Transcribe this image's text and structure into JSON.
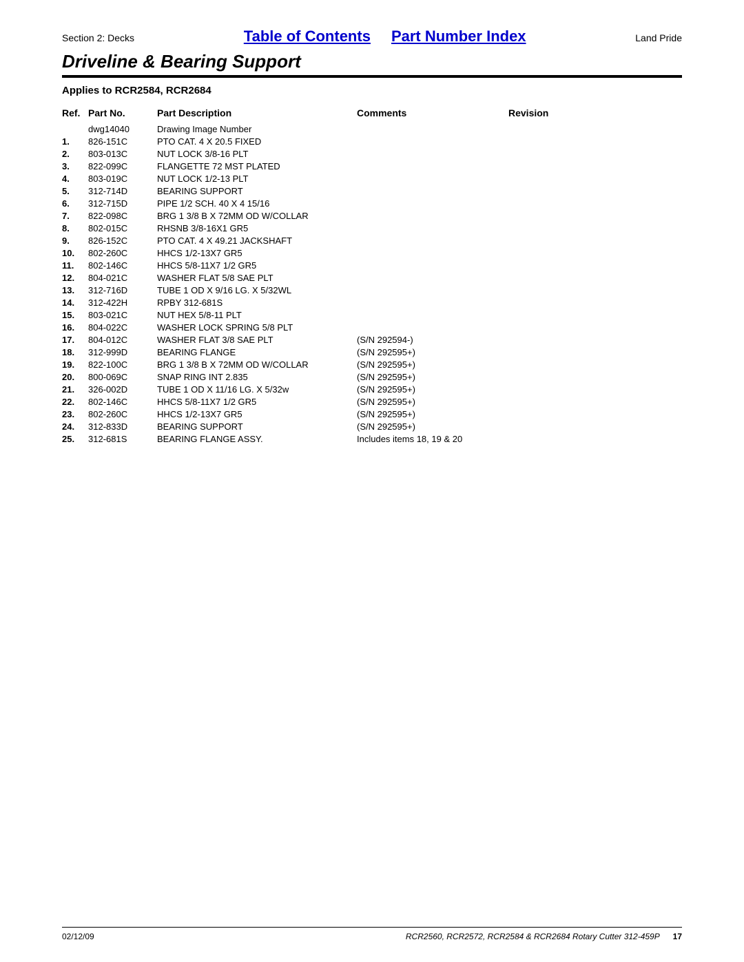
{
  "header": {
    "section_label": "Section 2: Decks",
    "toc_link": "Table of Contents",
    "pni_link": "Part Number Index",
    "brand": "Land Pride"
  },
  "title": "Driveline & Bearing Support",
  "applies_to": "Applies to RCR2584, RCR2684",
  "table": {
    "headers": {
      "ref": "Ref.",
      "partno": "Part No.",
      "desc": "Part Description",
      "comments": "Comments",
      "revision": "Revision"
    },
    "rows": [
      {
        "ref": "",
        "partno": "dwg14040",
        "desc": "Drawing Image Number",
        "comments": "",
        "revision": ""
      },
      {
        "ref": "1.",
        "partno": "826-151C",
        "desc": "PTO CAT. 4 X 20.5 FIXED",
        "comments": "",
        "revision": ""
      },
      {
        "ref": "2.",
        "partno": "803-013C",
        "desc": "NUT LOCK 3/8-16 PLT",
        "comments": "",
        "revision": ""
      },
      {
        "ref": "3.",
        "partno": "822-099C",
        "desc": "FLANGETTE 72 MST PLATED",
        "comments": "",
        "revision": ""
      },
      {
        "ref": "4.",
        "partno": "803-019C",
        "desc": "NUT LOCK 1/2-13 PLT",
        "comments": "",
        "revision": ""
      },
      {
        "ref": "5.",
        "partno": "312-714D",
        "desc": "BEARING SUPPORT",
        "comments": "",
        "revision": ""
      },
      {
        "ref": "6.",
        "partno": "312-715D",
        "desc": "PIPE 1/2 SCH. 40 X 4 15/16",
        "comments": "",
        "revision": ""
      },
      {
        "ref": "7.",
        "partno": "822-098C",
        "desc": "BRG 1 3/8 B X 72MM OD W/COLLAR",
        "comments": "",
        "revision": ""
      },
      {
        "ref": "8.",
        "partno": "802-015C",
        "desc": "RHSNB 3/8-16X1 GR5",
        "comments": "",
        "revision": ""
      },
      {
        "ref": "9.",
        "partno": "826-152C",
        "desc": "PTO CAT. 4 X 49.21 JACKSHAFT",
        "comments": "",
        "revision": ""
      },
      {
        "ref": "10.",
        "partno": "802-260C",
        "desc": "HHCS 1/2-13X7 GR5",
        "comments": "",
        "revision": ""
      },
      {
        "ref": "11.",
        "partno": "802-146C",
        "desc": "HHCS 5/8-11X7 1/2 GR5",
        "comments": "",
        "revision": ""
      },
      {
        "ref": "12.",
        "partno": "804-021C",
        "desc": "WASHER FLAT 5/8 SAE PLT",
        "comments": "",
        "revision": ""
      },
      {
        "ref": "13.",
        "partno": "312-716D",
        "desc": "TUBE 1 OD X 9/16 LG. X 5/32WL",
        "comments": "",
        "revision": ""
      },
      {
        "ref": "14.",
        "partno": "312-422H",
        "desc": "RPBY 312-681S",
        "comments": "",
        "revision": ""
      },
      {
        "ref": "15.",
        "partno": "803-021C",
        "desc": "NUT HEX 5/8-11 PLT",
        "comments": "",
        "revision": ""
      },
      {
        "ref": "16.",
        "partno": "804-022C",
        "desc": "WASHER LOCK SPRING 5/8 PLT",
        "comments": "",
        "revision": ""
      },
      {
        "ref": "17.",
        "partno": "804-012C",
        "desc": "WASHER FLAT 3/8 SAE PLT",
        "comments": "(S/N 292594-)",
        "revision": ""
      },
      {
        "ref": "18.",
        "partno": "312-999D",
        "desc": "BEARING FLANGE",
        "comments": "(S/N 292595+)",
        "revision": ""
      },
      {
        "ref": "19.",
        "partno": "822-100C",
        "desc": "BRG 1 3/8 B X 72MM OD W/COLLAR",
        "comments": "(S/N 292595+)",
        "revision": ""
      },
      {
        "ref": "20.",
        "partno": "800-069C",
        "desc": "SNAP RING INT 2.835",
        "comments": "(S/N 292595+)",
        "revision": ""
      },
      {
        "ref": "21.",
        "partno": "326-002D",
        "desc": "TUBE 1 OD X 11/16 LG. X 5/32w",
        "comments": "(S/N 292595+)",
        "revision": ""
      },
      {
        "ref": "22.",
        "partno": "802-146C",
        "desc": "HHCS 5/8-11X7 1/2 GR5",
        "comments": "(S/N 292595+)",
        "revision": ""
      },
      {
        "ref": "23.",
        "partno": "802-260C",
        "desc": "HHCS 1/2-13X7 GR5",
        "comments": "(S/N 292595+)",
        "revision": ""
      },
      {
        "ref": "24.",
        "partno": "312-833D",
        "desc": "BEARING SUPPORT",
        "comments": "(S/N 292595+)",
        "revision": ""
      },
      {
        "ref": "25.",
        "partno": "312-681S",
        "desc": "BEARING FLANGE ASSY.",
        "comments": "Includes items 18, 19 & 20",
        "revision": ""
      }
    ]
  },
  "footer": {
    "date": "02/12/09",
    "doc": "RCR2560, RCR2572, RCR2584 & RCR2684 Rotary Cutter 312-459P",
    "page": "17"
  }
}
